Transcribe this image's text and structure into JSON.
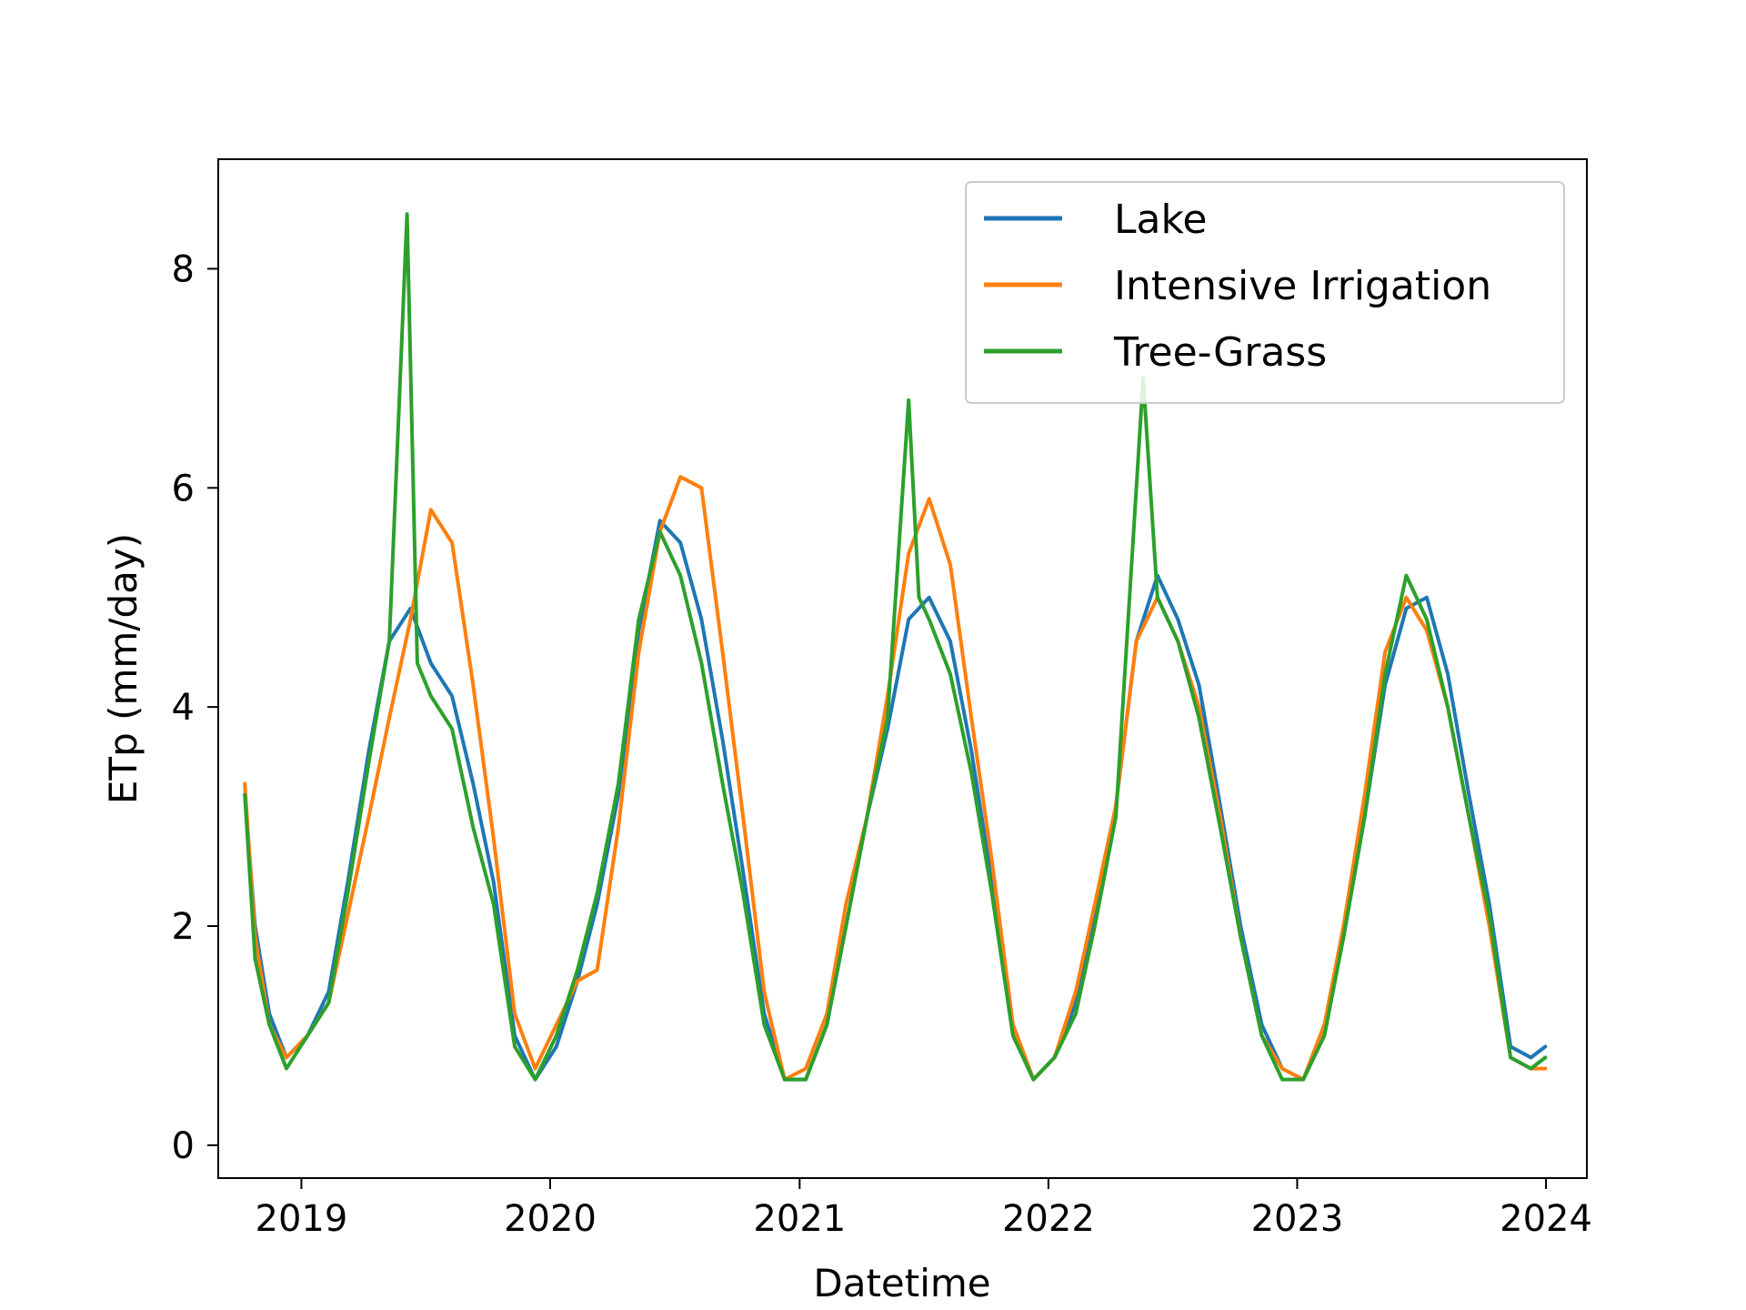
{
  "chart_data": {
    "type": "line",
    "title": "",
    "xlabel": "Datetime",
    "ylabel": "ETp (mm/day)",
    "xlim": [
      "2018-09-01",
      "2024-03-01"
    ],
    "ylim": [
      -0.3,
      9.0
    ],
    "x_ticks": [
      {
        "date": "2019-01-01",
        "label": "2019"
      },
      {
        "date": "2020-01-01",
        "label": "2020"
      },
      {
        "date": "2021-01-01",
        "label": "2021"
      },
      {
        "date": "2022-01-01",
        "label": "2022"
      },
      {
        "date": "2023-01-01",
        "label": "2023"
      },
      {
        "date": "2024-01-01",
        "label": "2024"
      }
    ],
    "y_ticks": [
      0,
      2,
      4,
      6,
      8
    ],
    "grid": false,
    "legend_position": "top-right",
    "series_order_drawn": [
      "Lake",
      "Intensive Irrigation",
      "Tree-Grass"
    ],
    "series": [
      {
        "name": "Lake",
        "color": "#1f77b4",
        "points": [
          [
            "2018-10-10",
            3.2
          ],
          [
            "2018-10-25",
            2.0
          ],
          [
            "2018-11-15",
            1.2
          ],
          [
            "2018-12-10",
            0.8
          ],
          [
            "2019-01-10",
            1.0
          ],
          [
            "2019-02-10",
            1.4
          ],
          [
            "2019-03-10",
            2.4
          ],
          [
            "2019-04-10",
            3.6
          ],
          [
            "2019-05-10",
            4.6
          ],
          [
            "2019-06-10",
            4.9
          ],
          [
            "2019-07-10",
            4.4
          ],
          [
            "2019-08-10",
            4.1
          ],
          [
            "2019-09-10",
            3.3
          ],
          [
            "2019-10-10",
            2.4
          ],
          [
            "2019-11-10",
            1.0
          ],
          [
            "2019-12-10",
            0.6
          ],
          [
            "2020-01-10",
            0.9
          ],
          [
            "2020-02-10",
            1.5
          ],
          [
            "2020-03-10",
            2.2
          ],
          [
            "2020-04-10",
            3.2
          ],
          [
            "2020-05-10",
            4.7
          ],
          [
            "2020-06-10",
            5.7
          ],
          [
            "2020-07-10",
            5.5
          ],
          [
            "2020-08-10",
            4.8
          ],
          [
            "2020-09-10",
            3.7
          ],
          [
            "2020-10-10",
            2.5
          ],
          [
            "2020-11-10",
            1.2
          ],
          [
            "2020-12-10",
            0.6
          ],
          [
            "2021-01-10",
            0.6
          ],
          [
            "2021-02-10",
            1.1
          ],
          [
            "2021-03-10",
            2.0
          ],
          [
            "2021-04-10",
            3.0
          ],
          [
            "2021-05-10",
            3.8
          ],
          [
            "2021-06-10",
            4.8
          ],
          [
            "2021-07-10",
            5.0
          ],
          [
            "2021-08-10",
            4.6
          ],
          [
            "2021-09-10",
            3.6
          ],
          [
            "2021-10-10",
            2.4
          ],
          [
            "2021-11-10",
            1.1
          ],
          [
            "2021-12-10",
            0.6
          ],
          [
            "2022-01-10",
            0.8
          ],
          [
            "2022-02-10",
            1.3
          ],
          [
            "2022-03-10",
            2.1
          ],
          [
            "2022-04-10",
            3.1
          ],
          [
            "2022-05-10",
            4.6
          ],
          [
            "2022-06-10",
            5.2
          ],
          [
            "2022-07-10",
            4.8
          ],
          [
            "2022-08-10",
            4.2
          ],
          [
            "2022-09-10",
            3.1
          ],
          [
            "2022-10-10",
            2.0
          ],
          [
            "2022-11-10",
            1.1
          ],
          [
            "2022-12-10",
            0.7
          ],
          [
            "2023-01-10",
            0.6
          ],
          [
            "2023-02-10",
            1.1
          ],
          [
            "2023-03-10",
            1.9
          ],
          [
            "2023-04-10",
            3.0
          ],
          [
            "2023-05-10",
            4.2
          ],
          [
            "2023-06-10",
            4.9
          ],
          [
            "2023-07-10",
            5.0
          ],
          [
            "2023-08-10",
            4.3
          ],
          [
            "2023-09-10",
            3.2
          ],
          [
            "2023-10-10",
            2.2
          ],
          [
            "2023-11-10",
            0.9
          ],
          [
            "2023-12-10",
            0.8
          ],
          [
            "2023-12-31",
            0.9
          ]
        ]
      },
      {
        "name": "Intensive Irrigation",
        "color": "#ff7f0e",
        "points": [
          [
            "2018-10-10",
            3.3
          ],
          [
            "2018-10-25",
            1.9
          ],
          [
            "2018-11-15",
            1.1
          ],
          [
            "2018-12-10",
            0.8
          ],
          [
            "2019-01-10",
            1.0
          ],
          [
            "2019-02-10",
            1.3
          ],
          [
            "2019-03-10",
            2.1
          ],
          [
            "2019-04-10",
            3.0
          ],
          [
            "2019-05-10",
            3.9
          ],
          [
            "2019-06-10",
            4.8
          ],
          [
            "2019-07-10",
            5.8
          ],
          [
            "2019-08-10",
            5.5
          ],
          [
            "2019-09-10",
            4.2
          ],
          [
            "2019-10-10",
            2.8
          ],
          [
            "2019-11-10",
            1.2
          ],
          [
            "2019-12-10",
            0.7
          ],
          [
            "2020-01-10",
            1.1
          ],
          [
            "2020-02-10",
            1.5
          ],
          [
            "2020-03-10",
            1.6
          ],
          [
            "2020-04-10",
            2.9
          ],
          [
            "2020-05-10",
            4.5
          ],
          [
            "2020-06-10",
            5.6
          ],
          [
            "2020-07-10",
            6.1
          ],
          [
            "2020-08-10",
            6.0
          ],
          [
            "2020-09-10",
            4.5
          ],
          [
            "2020-10-10",
            3.0
          ],
          [
            "2020-11-10",
            1.4
          ],
          [
            "2020-12-10",
            0.6
          ],
          [
            "2021-01-10",
            0.7
          ],
          [
            "2021-02-10",
            1.2
          ],
          [
            "2021-03-10",
            2.2
          ],
          [
            "2021-04-10",
            3.0
          ],
          [
            "2021-05-10",
            4.1
          ],
          [
            "2021-06-10",
            5.4
          ],
          [
            "2021-07-10",
            5.9
          ],
          [
            "2021-08-10",
            5.3
          ],
          [
            "2021-09-10",
            3.9
          ],
          [
            "2021-10-10",
            2.6
          ],
          [
            "2021-11-10",
            1.1
          ],
          [
            "2021-12-10",
            0.6
          ],
          [
            "2022-01-10",
            0.8
          ],
          [
            "2022-02-10",
            1.4
          ],
          [
            "2022-03-10",
            2.2
          ],
          [
            "2022-04-10",
            3.1
          ],
          [
            "2022-05-10",
            4.6
          ],
          [
            "2022-06-10",
            5.0
          ],
          [
            "2022-07-10",
            4.6
          ],
          [
            "2022-08-10",
            4.0
          ],
          [
            "2022-09-10",
            3.0
          ],
          [
            "2022-10-10",
            1.9
          ],
          [
            "2022-11-10",
            1.0
          ],
          [
            "2022-12-10",
            0.7
          ],
          [
            "2023-01-10",
            0.6
          ],
          [
            "2023-02-10",
            1.1
          ],
          [
            "2023-03-10",
            2.0
          ],
          [
            "2023-04-10",
            3.2
          ],
          [
            "2023-05-10",
            4.5
          ],
          [
            "2023-06-10",
            5.0
          ],
          [
            "2023-07-10",
            4.7
          ],
          [
            "2023-08-10",
            4.0
          ],
          [
            "2023-09-10",
            3.0
          ],
          [
            "2023-10-10",
            2.0
          ],
          [
            "2023-11-10",
            0.8
          ],
          [
            "2023-12-10",
            0.7
          ],
          [
            "2023-12-31",
            0.7
          ]
        ]
      },
      {
        "name": "Tree-Grass",
        "color": "#2ca02c",
        "points": [
          [
            "2018-10-10",
            3.2
          ],
          [
            "2018-10-25",
            1.7
          ],
          [
            "2018-11-15",
            1.1
          ],
          [
            "2018-12-10",
            0.7
          ],
          [
            "2019-01-10",
            1.0
          ],
          [
            "2019-02-10",
            1.3
          ],
          [
            "2019-03-10",
            2.3
          ],
          [
            "2019-04-10",
            3.5
          ],
          [
            "2019-05-10",
            4.6
          ],
          [
            "2019-06-05",
            8.5
          ],
          [
            "2019-06-20",
            4.4
          ],
          [
            "2019-07-10",
            4.1
          ],
          [
            "2019-08-10",
            3.8
          ],
          [
            "2019-09-10",
            2.9
          ],
          [
            "2019-10-10",
            2.2
          ],
          [
            "2019-11-10",
            0.9
          ],
          [
            "2019-12-10",
            0.6
          ],
          [
            "2020-01-10",
            1.0
          ],
          [
            "2020-02-10",
            1.6
          ],
          [
            "2020-03-10",
            2.3
          ],
          [
            "2020-04-10",
            3.3
          ],
          [
            "2020-05-10",
            4.8
          ],
          [
            "2020-06-10",
            5.6
          ],
          [
            "2020-07-10",
            5.2
          ],
          [
            "2020-08-10",
            4.4
          ],
          [
            "2020-09-10",
            3.3
          ],
          [
            "2020-10-10",
            2.3
          ],
          [
            "2020-11-10",
            1.1
          ],
          [
            "2020-12-10",
            0.6
          ],
          [
            "2021-01-10",
            0.6
          ],
          [
            "2021-02-10",
            1.1
          ],
          [
            "2021-03-10",
            2.0
          ],
          [
            "2021-04-10",
            3.0
          ],
          [
            "2021-05-10",
            3.9
          ],
          [
            "2021-06-10",
            6.8
          ],
          [
            "2021-06-25",
            5.0
          ],
          [
            "2021-07-10",
            4.8
          ],
          [
            "2021-08-10",
            4.3
          ],
          [
            "2021-09-10",
            3.4
          ],
          [
            "2021-10-10",
            2.3
          ],
          [
            "2021-11-10",
            1.0
          ],
          [
            "2021-12-10",
            0.6
          ],
          [
            "2022-01-10",
            0.8
          ],
          [
            "2022-02-10",
            1.2
          ],
          [
            "2022-03-10",
            2.0
          ],
          [
            "2022-04-10",
            3.0
          ],
          [
            "2022-05-20",
            7.0
          ],
          [
            "2022-06-10",
            5.0
          ],
          [
            "2022-07-10",
            4.6
          ],
          [
            "2022-08-10",
            3.9
          ],
          [
            "2022-09-10",
            2.9
          ],
          [
            "2022-10-10",
            1.9
          ],
          [
            "2022-11-10",
            1.0
          ],
          [
            "2022-12-10",
            0.6
          ],
          [
            "2023-01-10",
            0.6
          ],
          [
            "2023-02-10",
            1.0
          ],
          [
            "2023-03-10",
            1.9
          ],
          [
            "2023-04-10",
            3.0
          ],
          [
            "2023-05-10",
            4.3
          ],
          [
            "2023-06-10",
            5.2
          ],
          [
            "2023-07-10",
            4.8
          ],
          [
            "2023-08-10",
            4.0
          ],
          [
            "2023-09-10",
            3.0
          ],
          [
            "2023-10-10",
            2.1
          ],
          [
            "2023-11-10",
            0.8
          ],
          [
            "2023-12-10",
            0.7
          ],
          [
            "2023-12-31",
            0.8
          ]
        ]
      }
    ]
  }
}
